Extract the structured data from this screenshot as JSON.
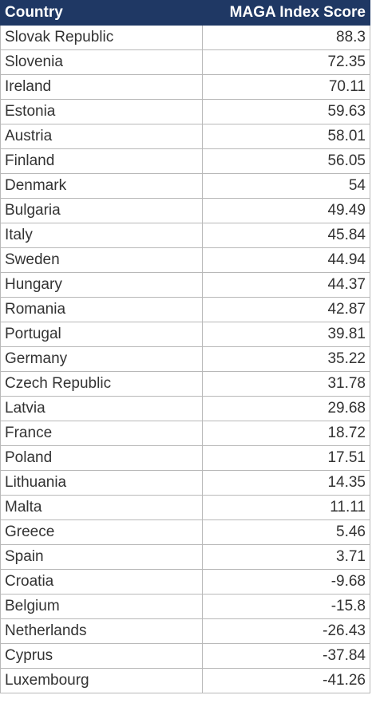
{
  "table": {
    "header": [
      "Country",
      "MAGA Index Score"
    ],
    "rows": [
      [
        "Slovak Republic",
        "88.3"
      ],
      [
        "Slovenia",
        "72.35"
      ],
      [
        "Ireland",
        "70.11"
      ],
      [
        "Estonia",
        "59.63"
      ],
      [
        "Austria",
        "58.01"
      ],
      [
        "Finland",
        "56.05"
      ],
      [
        "Denmark",
        "54"
      ],
      [
        "Bulgaria",
        "49.49"
      ],
      [
        "Italy",
        "45.84"
      ],
      [
        "Sweden",
        "44.94"
      ],
      [
        "Hungary",
        "44.37"
      ],
      [
        "Romania",
        "42.87"
      ],
      [
        "Portugal",
        "39.81"
      ],
      [
        "Germany",
        "35.22"
      ],
      [
        "Czech Republic",
        "31.78"
      ],
      [
        "Latvia",
        "29.68"
      ],
      [
        "France",
        "18.72"
      ],
      [
        "Poland",
        "17.51"
      ],
      [
        "Lithuania",
        "14.35"
      ],
      [
        "Malta",
        "11.11"
      ],
      [
        "Greece",
        "5.46"
      ],
      [
        "Spain",
        "3.71"
      ],
      [
        "Croatia",
        "-9.68"
      ],
      [
        "Belgium",
        "-15.8"
      ],
      [
        "Netherlands",
        "-26.43"
      ],
      [
        "Cyprus",
        "-37.84"
      ],
      [
        "Luxembourg",
        "-41.26"
      ]
    ]
  }
}
